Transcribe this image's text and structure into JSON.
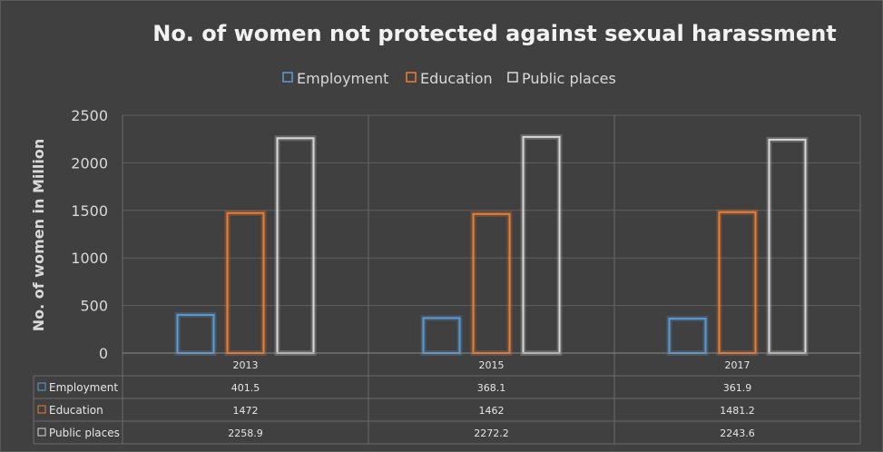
{
  "chart_data": {
    "type": "bar",
    "title": "No. of women not protected against sexual harassment",
    "ylabel": "No. of women in Million",
    "xlabel": "",
    "categories": [
      "2013",
      "2015",
      "2017"
    ],
    "series": [
      {
        "name": "Employment",
        "color": "#5b9bd5",
        "values": [
          401.5,
          368.1,
          361.9
        ],
        "display": [
          "401.5",
          "368.1",
          "361.9"
        ]
      },
      {
        "name": "Education",
        "color": "#ed7d31",
        "values": [
          1472,
          1462,
          1481.2
        ],
        "display": [
          "1472",
          "1462",
          "1481.2"
        ]
      },
      {
        "name": "Public places",
        "color": "#d9d9d9",
        "values": [
          2258.9,
          2272.2,
          2243.6
        ],
        "display": [
          "2258.9",
          "2272.2",
          "2243.6"
        ]
      }
    ],
    "ylim": [
      0,
      2500
    ],
    "yticks": [
      "0",
      "500",
      "1000",
      "1500",
      "2000",
      "2500"
    ],
    "grid": true,
    "legend": "top-center",
    "data_table": true
  }
}
